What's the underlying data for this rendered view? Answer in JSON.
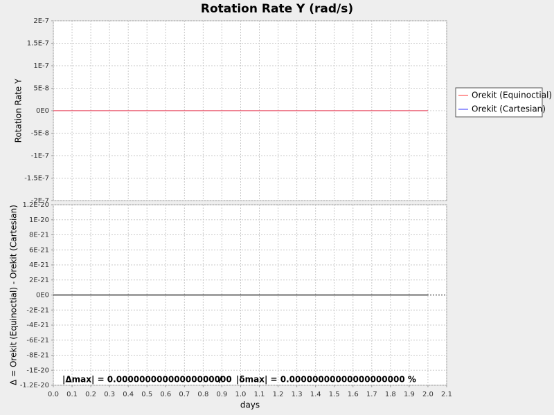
{
  "chart_data": [
    {
      "type": "line",
      "title": "Rotation Rate Y (rad/s)",
      "ylabel": "Rotation Rate Y",
      "x": [
        0,
        2
      ],
      "xlim": [
        0,
        2.1
      ],
      "series": [
        {
          "name": "Orekit (Equinoctial)",
          "color": "#ff5555",
          "values": [
            0,
            0
          ]
        },
        {
          "name": "Orekit (Cartesian)",
          "color": "#5555ff",
          "values": [
            0,
            0
          ]
        }
      ],
      "ylim": [
        -2e-07,
        2e-07
      ],
      "yticks": [
        {
          "value": 2e-07,
          "label": "2E-7"
        },
        {
          "value": 1.5e-07,
          "label": "1.5E-7"
        },
        {
          "value": 1e-07,
          "label": "1E-7"
        },
        {
          "value": 5e-08,
          "label": "5E-8"
        },
        {
          "value": 0,
          "label": "0E0"
        },
        {
          "value": -5e-08,
          "label": "-5E-8"
        },
        {
          "value": -1e-07,
          "label": "-1E-7"
        },
        {
          "value": -1.5e-07,
          "label": "-1.5E-7"
        },
        {
          "value": -2e-07,
          "label": "-2E-7"
        }
      ],
      "grid": true,
      "legend": "right"
    },
    {
      "type": "line",
      "ylabel": "Δ = Orekit (Equinoctial) - Orekit (Cartesian)",
      "xlabel": "days",
      "x": [
        0,
        2
      ],
      "values": [
        0,
        0
      ],
      "color": "#000000",
      "xlim": [
        0,
        2.1
      ],
      "xticks": [
        {
          "value": 0,
          "label": "0.0"
        },
        0.1,
        0.2,
        0.3,
        0.4,
        0.5,
        0.6,
        0.7,
        0.8,
        0.9,
        {
          "value": 1,
          "label": "1.0"
        },
        1.1,
        1.2,
        1.3,
        1.4,
        1.5,
        1.6,
        1.7,
        1.8,
        1.9,
        {
          "value": 2,
          "label": "2.0"
        },
        2.1
      ],
      "ylim": [
        -1.2e-20,
        1.2e-20
      ],
      "yticks": [
        {
          "value": 1.2e-20,
          "label": "1.2E-20"
        },
        {
          "value": 1e-20,
          "label": "1E-20"
        },
        {
          "value": 8e-21,
          "label": "8E-21"
        },
        {
          "value": 6e-21,
          "label": "6E-21"
        },
        {
          "value": 4e-21,
          "label": "4E-21"
        },
        {
          "value": 2e-21,
          "label": "2E-21"
        },
        {
          "value": 0,
          "label": "0E0"
        },
        {
          "value": -2e-21,
          "label": "-2E-21"
        },
        {
          "value": -4e-21,
          "label": "-4E-21"
        },
        {
          "value": -6e-21,
          "label": "-6E-21"
        },
        {
          "value": -8e-21,
          "label": "-8E-21"
        },
        {
          "value": -1e-20,
          "label": "-1E-20"
        },
        {
          "value": -1.2e-20,
          "label": "-1.2E-20"
        }
      ],
      "grid": true,
      "annotations": [
        "|Δmax| = 0.00000000000000000000",
        "/",
        "|δmax| = 0.00000000000000000000 %"
      ]
    }
  ]
}
